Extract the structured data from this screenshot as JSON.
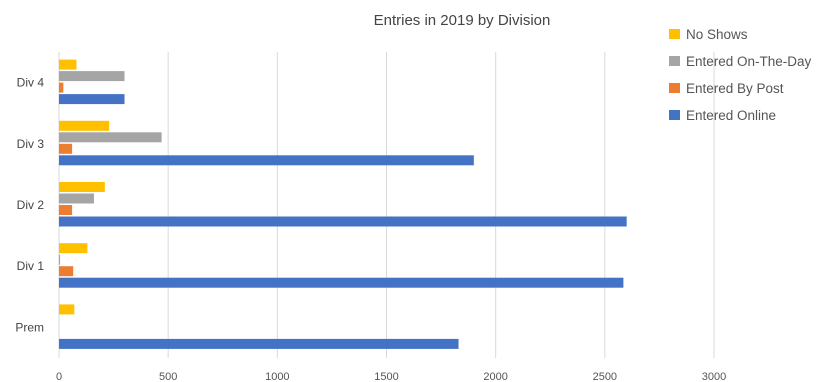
{
  "chart_data": {
    "type": "bar",
    "orientation": "horizontal",
    "title": "Entries in 2019 by Division",
    "categories": [
      "Prem",
      "Div 1",
      "Div 2",
      "Div 3",
      "Div 4"
    ],
    "series": [
      {
        "name": "Entered Online",
        "color": "#4472C4",
        "values": [
          1830,
          2585,
          2600,
          1900,
          300
        ]
      },
      {
        "name": "Entered By Post",
        "color": "#ED7D31",
        "values": [
          0,
          65,
          60,
          60,
          20
        ]
      },
      {
        "name": "Entered On-The-Day",
        "color": "#A5A5A5",
        "values": [
          0,
          5,
          160,
          470,
          300
        ]
      },
      {
        "name": "No Shows",
        "color": "#FFC000",
        "values": [
          70,
          130,
          210,
          230,
          80
        ]
      }
    ],
    "xlim": [
      0,
      3000
    ],
    "xticks": [
      "0",
      "500",
      "1000",
      "1500",
      "2000",
      "2500",
      "3000"
    ],
    "xlabel": "",
    "ylabel": "",
    "grid": "vertical",
    "legend_position": "top-right",
    "legend_order": [
      "No Shows",
      "Entered On-The-Day",
      "Entered By Post",
      "Entered Online"
    ]
  }
}
